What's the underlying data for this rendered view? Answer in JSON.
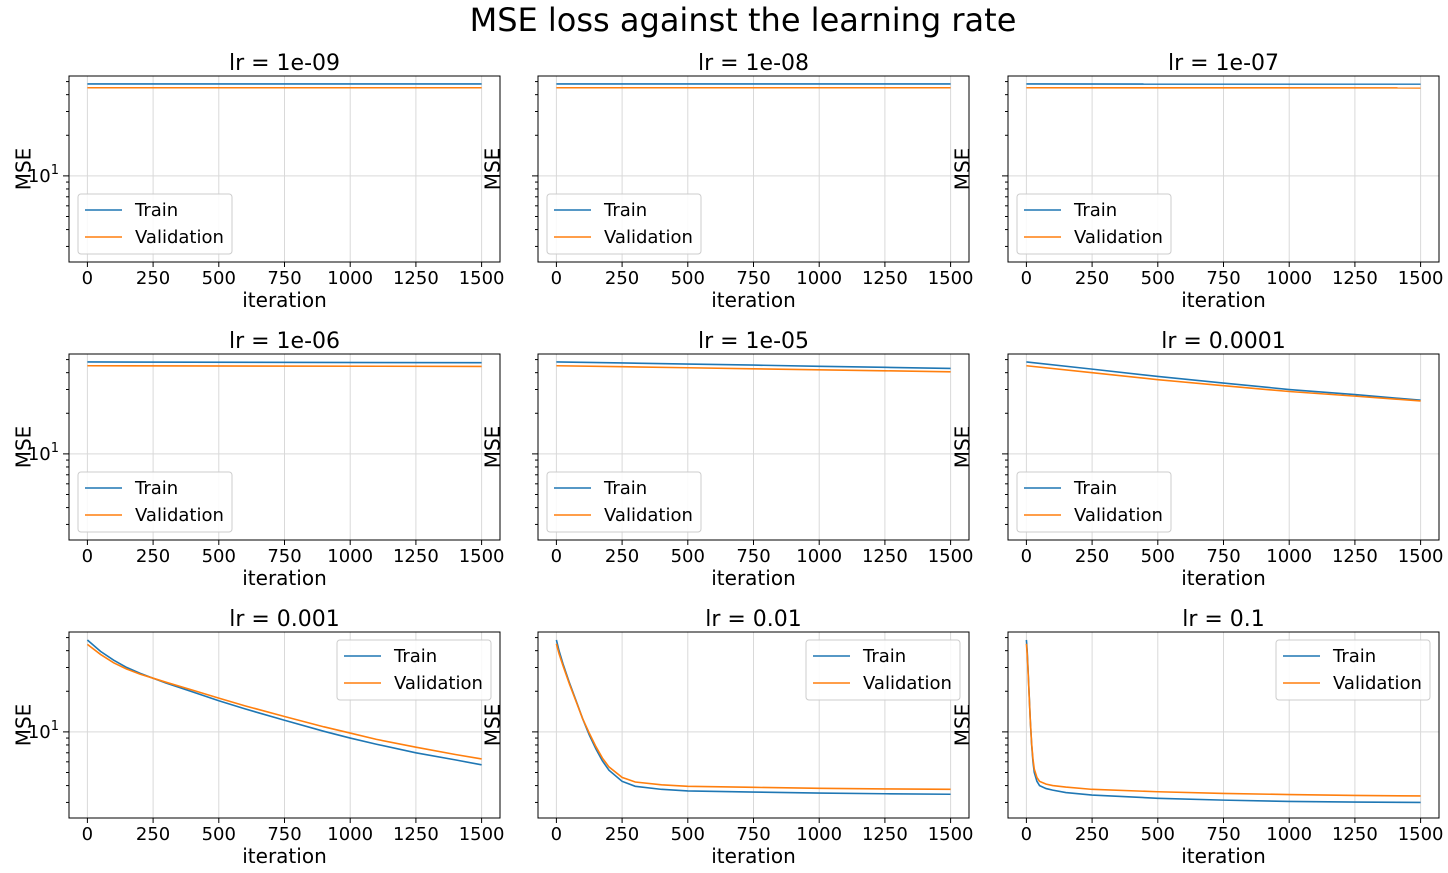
{
  "figure": {
    "title": "MSE loss against the learning rate"
  },
  "colors": {
    "train": "#1f77b4",
    "validation": "#ff7f0e",
    "grid": "#d9d9d9"
  },
  "chart_data": [
    {
      "type": "line",
      "title": "lr = 1e-09",
      "xlabel": "iteration",
      "ylabel": "MSE",
      "yscale": "log",
      "xlim": [
        -70,
        1570
      ],
      "ylim": [
        2.3,
        55
      ],
      "xticks": [
        0,
        250,
        500,
        750,
        1000,
        1250,
        1500
      ],
      "xtick_labels": [
        "0",
        "250",
        "500",
        "750",
        "1000",
        "1250",
        "1500"
      ],
      "ytick_labels": [
        "10^1"
      ],
      "legend": {
        "position": "lower-left",
        "entries": [
          "Train",
          "Validation"
        ]
      },
      "grid": true,
      "series": [
        {
          "name": "Train",
          "x": [
            0,
            1500
          ],
          "y": [
            48.0,
            48.0
          ]
        },
        {
          "name": "Validation",
          "x": [
            0,
            1500
          ],
          "y": [
            45.0,
            45.0
          ]
        }
      ]
    },
    {
      "type": "line",
      "title": "lr = 1e-08",
      "xlabel": "iteration",
      "ylabel": "MSE",
      "yscale": "log",
      "xlim": [
        -70,
        1570
      ],
      "ylim": [
        2.3,
        55
      ],
      "xticks": [
        0,
        250,
        500,
        750,
        1000,
        1250,
        1500
      ],
      "xtick_labels": [
        "0",
        "250",
        "500",
        "750",
        "1000",
        "1250",
        "1500"
      ],
      "ytick_labels": [],
      "legend": {
        "position": "lower-left",
        "entries": [
          "Train",
          "Validation"
        ]
      },
      "grid": true,
      "series": [
        {
          "name": "Train",
          "x": [
            0,
            1500
          ],
          "y": [
            48.0,
            48.0
          ]
        },
        {
          "name": "Validation",
          "x": [
            0,
            1500
          ],
          "y": [
            45.0,
            45.0
          ]
        }
      ]
    },
    {
      "type": "line",
      "title": "lr = 1e-07",
      "xlabel": "iteration",
      "ylabel": "MSE",
      "yscale": "log",
      "xlim": [
        -70,
        1570
      ],
      "ylim": [
        2.3,
        55
      ],
      "xticks": [
        0,
        250,
        500,
        750,
        1000,
        1250,
        1500
      ],
      "xtick_labels": [
        "0",
        "250",
        "500",
        "750",
        "1000",
        "1250",
        "1500"
      ],
      "ytick_labels": [],
      "legend": {
        "position": "lower-left",
        "entries": [
          "Train",
          "Validation"
        ]
      },
      "grid": true,
      "series": [
        {
          "name": "Train",
          "x": [
            0,
            1500
          ],
          "y": [
            48.0,
            47.9
          ]
        },
        {
          "name": "Validation",
          "x": [
            0,
            1500
          ],
          "y": [
            45.0,
            44.9
          ]
        }
      ]
    },
    {
      "type": "line",
      "title": "lr = 1e-06",
      "xlabel": "iteration",
      "ylabel": "MSE",
      "yscale": "log",
      "xlim": [
        -70,
        1570
      ],
      "ylim": [
        2.3,
        55
      ],
      "xticks": [
        0,
        250,
        500,
        750,
        1000,
        1250,
        1500
      ],
      "xtick_labels": [
        "0",
        "250",
        "500",
        "750",
        "1000",
        "1250",
        "1500"
      ],
      "ytick_labels": [
        "10^1"
      ],
      "legend": {
        "position": "lower-left",
        "entries": [
          "Train",
          "Validation"
        ]
      },
      "grid": true,
      "series": [
        {
          "name": "Train",
          "x": [
            0,
            1500
          ],
          "y": [
            48.0,
            47.4
          ]
        },
        {
          "name": "Validation",
          "x": [
            0,
            1500
          ],
          "y": [
            45.0,
            44.5
          ]
        }
      ]
    },
    {
      "type": "line",
      "title": "lr = 1e-05",
      "xlabel": "iteration",
      "ylabel": "MSE",
      "yscale": "log",
      "xlim": [
        -70,
        1570
      ],
      "ylim": [
        2.3,
        55
      ],
      "xticks": [
        0,
        250,
        500,
        750,
        1000,
        1250,
        1500
      ],
      "xtick_labels": [
        "0",
        "250",
        "500",
        "750",
        "1000",
        "1250",
        "1500"
      ],
      "ytick_labels": [],
      "legend": {
        "position": "lower-left",
        "entries": [
          "Train",
          "Validation"
        ]
      },
      "grid": true,
      "series": [
        {
          "name": "Train",
          "x": [
            0,
            250,
            500,
            750,
            1000,
            1250,
            1500
          ],
          "y": [
            48.0,
            47.2,
            46.3,
            45.5,
            44.6,
            43.8,
            43.0
          ]
        },
        {
          "name": "Validation",
          "x": [
            0,
            250,
            500,
            750,
            1000,
            1250,
            1500
          ],
          "y": [
            45.0,
            44.3,
            43.5,
            42.7,
            42.0,
            41.3,
            40.6
          ]
        }
      ]
    },
    {
      "type": "line",
      "title": "lr = 0.0001",
      "xlabel": "iteration",
      "ylabel": "MSE",
      "yscale": "log",
      "xlim": [
        -70,
        1570
      ],
      "ylim": [
        2.3,
        55
      ],
      "xticks": [
        0,
        250,
        500,
        750,
        1000,
        1250,
        1500
      ],
      "xtick_labels": [
        "0",
        "250",
        "500",
        "750",
        "1000",
        "1250",
        "1500"
      ],
      "ytick_labels": [],
      "legend": {
        "position": "lower-left",
        "entries": [
          "Train",
          "Validation"
        ]
      },
      "grid": true,
      "series": [
        {
          "name": "Train",
          "x": [
            0,
            250,
            500,
            750,
            1000,
            1250,
            1500
          ],
          "y": [
            48.0,
            42.5,
            37.5,
            33.5,
            30.0,
            27.5,
            25.0
          ]
        },
        {
          "name": "Validation",
          "x": [
            0,
            250,
            500,
            750,
            1000,
            1250,
            1500
          ],
          "y": [
            45.0,
            40.0,
            35.5,
            32.0,
            29.0,
            26.8,
            24.7
          ]
        }
      ]
    },
    {
      "type": "line",
      "title": "lr = 0.001",
      "xlabel": "iteration",
      "ylabel": "MSE",
      "yscale": "log",
      "xlim": [
        -70,
        1570
      ],
      "ylim": [
        2.3,
        55
      ],
      "xticks": [
        0,
        250,
        500,
        750,
        1000,
        1250,
        1500
      ],
      "xtick_labels": [
        "0",
        "250",
        "500",
        "750",
        "1000",
        "1250",
        "1500"
      ],
      "ytick_labels": [
        "10^1"
      ],
      "legend": {
        "position": "upper-right",
        "entries": [
          "Train",
          "Validation"
        ]
      },
      "grid": true,
      "series": [
        {
          "name": "Train",
          "x": [
            0,
            50,
            100,
            150,
            200,
            250,
            300,
            400,
            500,
            600,
            750,
            900,
            1000,
            1100,
            1250,
            1400,
            1500
          ],
          "y": [
            48.0,
            39.5,
            34.0,
            30.0,
            27.2,
            25.0,
            23.0,
            19.8,
            17.0,
            14.8,
            12.2,
            10.1,
            9.0,
            8.1,
            7.0,
            6.2,
            5.7
          ]
        },
        {
          "name": "Validation",
          "x": [
            0,
            50,
            100,
            150,
            200,
            250,
            300,
            400,
            500,
            600,
            750,
            900,
            1000,
            1100,
            1250,
            1400,
            1500
          ],
          "y": [
            44.5,
            37.5,
            32.5,
            29.2,
            26.8,
            25.0,
            23.3,
            20.4,
            17.8,
            15.6,
            13.0,
            10.9,
            9.8,
            8.8,
            7.7,
            6.8,
            6.3
          ]
        }
      ]
    },
    {
      "type": "line",
      "title": "lr = 0.01",
      "xlabel": "iteration",
      "ylabel": "MSE",
      "yscale": "log",
      "xlim": [
        -70,
        1570
      ],
      "ylim": [
        2.3,
        55
      ],
      "xticks": [
        0,
        250,
        500,
        750,
        1000,
        1250,
        1500
      ],
      "xtick_labels": [
        "0",
        "250",
        "500",
        "750",
        "1000",
        "1250",
        "1500"
      ],
      "ytick_labels": [],
      "legend": {
        "position": "upper-right",
        "entries": [
          "Train",
          "Validation"
        ]
      },
      "grid": true,
      "series": [
        {
          "name": "Train",
          "x": [
            0,
            10,
            25,
            50,
            75,
            100,
            125,
            150,
            175,
            200,
            250,
            300,
            400,
            500,
            750,
            1000,
            1250,
            1500
          ],
          "y": [
            48.0,
            40.0,
            32.0,
            23.0,
            17.0,
            12.5,
            9.5,
            7.5,
            6.1,
            5.2,
            4.3,
            3.95,
            3.75,
            3.65,
            3.58,
            3.52,
            3.48,
            3.45
          ]
        },
        {
          "name": "Validation",
          "x": [
            0,
            10,
            25,
            50,
            75,
            100,
            125,
            150,
            175,
            200,
            250,
            300,
            400,
            500,
            750,
            1000,
            1250,
            1500
          ],
          "y": [
            45.0,
            38.0,
            31.0,
            22.5,
            16.8,
            12.5,
            9.8,
            7.8,
            6.4,
            5.5,
            4.6,
            4.25,
            4.05,
            3.95,
            3.88,
            3.82,
            3.78,
            3.75
          ]
        }
      ]
    },
    {
      "type": "line",
      "title": "lr = 0.1",
      "xlabel": "iteration",
      "ylabel": "MSE",
      "yscale": "log",
      "xlim": [
        -70,
        1570
      ],
      "ylim": [
        2.3,
        55
      ],
      "xticks": [
        0,
        250,
        500,
        750,
        1000,
        1250,
        1500
      ],
      "xtick_labels": [
        "0",
        "250",
        "500",
        "750",
        "1000",
        "1250",
        "1500"
      ],
      "ytick_labels": [],
      "legend": {
        "position": "upper-right",
        "entries": [
          "Train",
          "Validation"
        ]
      },
      "grid": true,
      "series": [
        {
          "name": "Train",
          "x": [
            0,
            3,
            6,
            10,
            15,
            20,
            25,
            30,
            40,
            50,
            75,
            100,
            150,
            250,
            500,
            750,
            1000,
            1250,
            1500
          ],
          "y": [
            48.0,
            40.0,
            30.0,
            20.0,
            12.0,
            8.0,
            6.0,
            5.0,
            4.3,
            4.0,
            3.8,
            3.7,
            3.55,
            3.4,
            3.22,
            3.12,
            3.05,
            3.02,
            3.0
          ]
        },
        {
          "name": "Validation",
          "x": [
            0,
            3,
            6,
            10,
            15,
            20,
            25,
            30,
            40,
            50,
            75,
            100,
            150,
            250,
            500,
            750,
            1000,
            1250,
            1500
          ],
          "y": [
            45.0,
            38.0,
            29.0,
            19.5,
            12.0,
            8.2,
            6.3,
            5.3,
            4.6,
            4.3,
            4.1,
            4.0,
            3.9,
            3.75,
            3.6,
            3.5,
            3.43,
            3.38,
            3.35
          ]
        }
      ]
    }
  ]
}
